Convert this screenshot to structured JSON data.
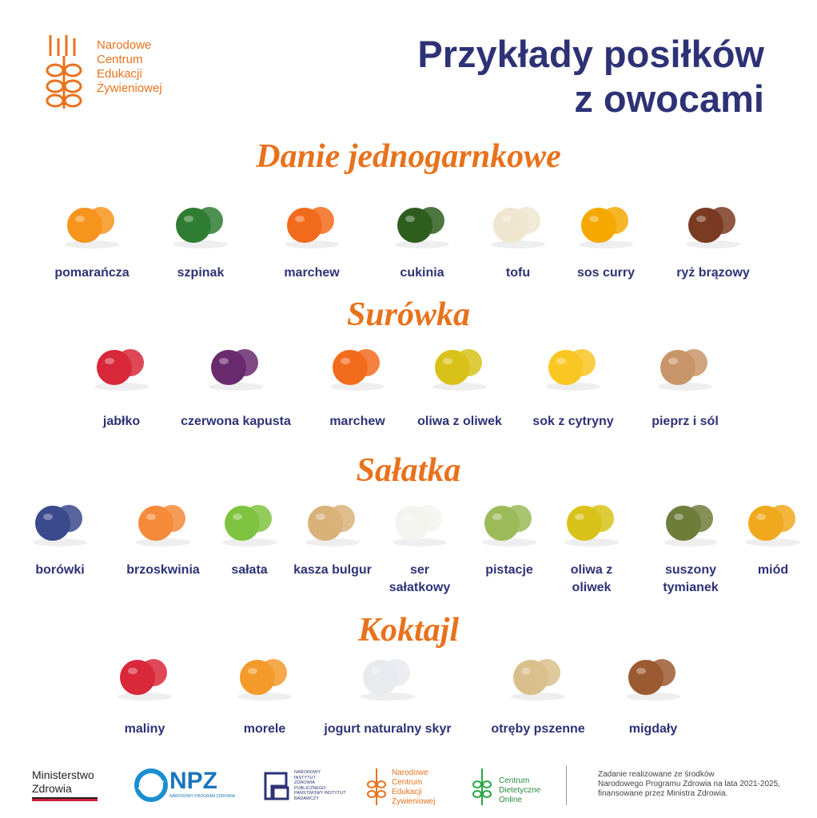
{
  "logo": {
    "lines": [
      "Narodowe",
      "Centrum",
      "Edukacji",
      "Żywieniowej"
    ]
  },
  "title": {
    "lines": [
      "Przykłady posiłków",
      "z owocami"
    ]
  },
  "sections": [
    {
      "title": "Danie jednogarnkowe",
      "items": [
        "pomarańcza",
        "szpinak",
        "marchew",
        "cukinia",
        "tofu",
        "sos curry",
        "ryż brązowy"
      ]
    },
    {
      "title": "Surówka",
      "items": [
        "jabłko",
        "czerwona kapusta",
        "marchew",
        "oliwa z oliwek",
        "sok z cytryny",
        "pieprz i sól"
      ]
    },
    {
      "title": "Sałatka",
      "items": [
        "borówki",
        "brzoskwinia",
        "sałata",
        "kasza bulgur",
        "ser sałatkowy",
        "pistacje",
        "oliwa z oliwek",
        "suszony tymianek",
        "miód"
      ]
    },
    {
      "title": "Koktajl",
      "items": [
        "maliny",
        "morele",
        "jogurt naturalny skyr",
        "otręby pszenne",
        "migdały"
      ]
    }
  ],
  "footer": {
    "ministry": [
      "Ministerstwo",
      "Zdrowia"
    ],
    "npz": {
      "name": "NPZ",
      "full": "NARODOWY PROGRAM ZDROWIA"
    },
    "nizp": [
      "NARODOWY",
      "INSTYTUT",
      "ZDROWIA",
      "PUBLICZNEGO",
      "PAŃSTWOWY INSTYTUT",
      "BADAWCZY"
    ],
    "ncez": [
      "Narodowe",
      "Centrum",
      "Edukacji",
      "Żywieniowej"
    ],
    "cdo": [
      "Centrum",
      "Dietetyczne",
      "Online"
    ],
    "note": [
      "Zadanie realizowane ze środków",
      "Narodowego Programu Zdrowia na lata 2021-2025,",
      "finansowane przez Ministra Zdrowia."
    ]
  }
}
